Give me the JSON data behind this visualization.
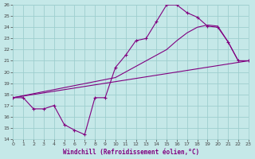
{
  "xlabel": "Windchill (Refroidissement éolien,°C)",
  "bg_color": "#c5e8e8",
  "grid_color": "#9ecece",
  "line_color": "#800080",
  "xmin": 0,
  "xmax": 23,
  "ymin": 14,
  "ymax": 26,
  "xticks": [
    0,
    1,
    2,
    3,
    4,
    5,
    6,
    7,
    8,
    9,
    10,
    11,
    12,
    13,
    14,
    15,
    16,
    17,
    18,
    19,
    20,
    21,
    22,
    23
  ],
  "yticks": [
    14,
    15,
    16,
    17,
    18,
    19,
    20,
    21,
    22,
    23,
    24,
    25,
    26
  ],
  "line1_x": [
    0,
    1,
    2,
    3,
    4,
    5,
    6,
    7,
    8,
    9,
    10,
    11,
    12,
    13,
    14,
    15,
    16,
    17,
    18,
    19,
    20,
    21,
    22,
    23
  ],
  "line1_y": [
    17.7,
    17.7,
    16.7,
    16.7,
    17.0,
    15.3,
    14.8,
    14.4,
    17.7,
    17.7,
    20.4,
    21.5,
    22.8,
    23.0,
    24.5,
    26.0,
    26.0,
    25.3,
    24.9,
    24.1,
    24.0,
    22.7,
    21.0,
    21.0
  ],
  "line2_x": [
    0,
    23
  ],
  "line2_y": [
    17.7,
    21.0
  ],
  "line3_x": [
    0,
    10,
    14,
    15,
    16,
    17,
    18,
    19,
    20,
    21,
    22,
    23
  ],
  "line3_y": [
    17.7,
    19.5,
    21.5,
    22.0,
    22.8,
    23.5,
    24.0,
    24.2,
    24.1,
    22.7,
    21.0,
    21.0
  ]
}
